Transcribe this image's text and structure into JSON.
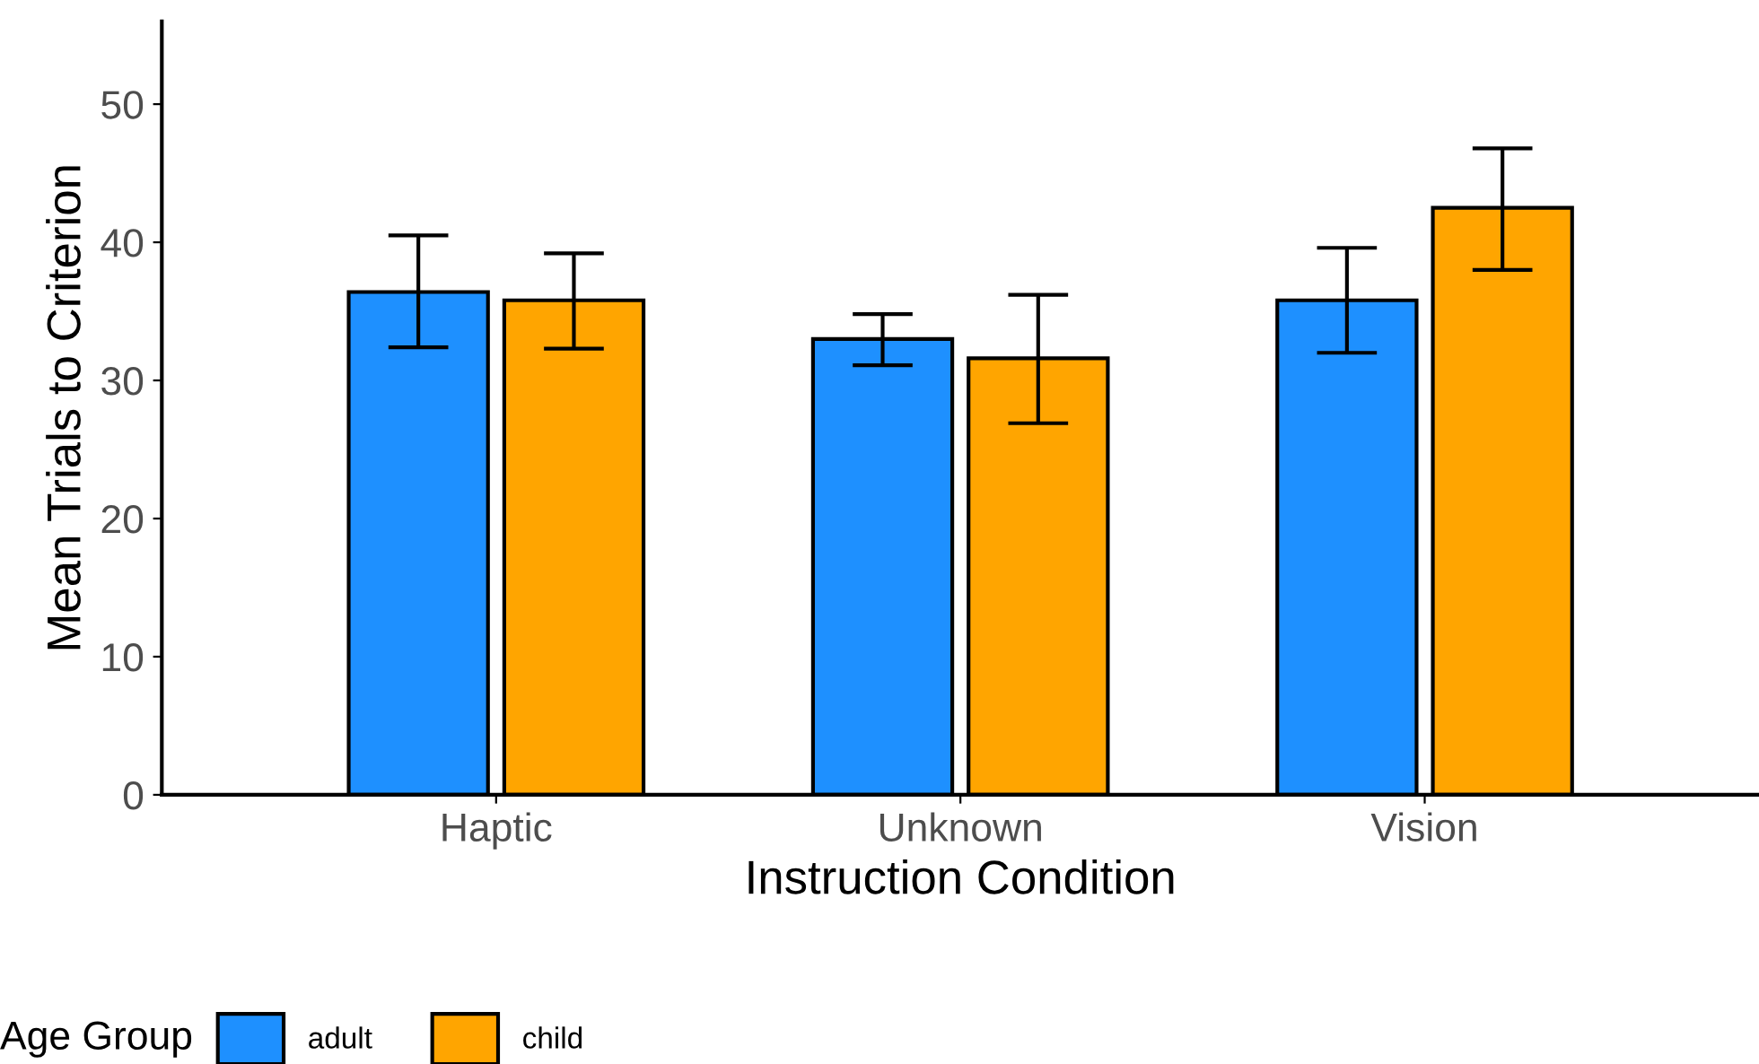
{
  "chart_data": {
    "type": "bar",
    "xlabel": "Instruction Condition",
    "ylabel": "Mean Trials to Criterion",
    "legend_title": "Age Group",
    "categories": [
      "Haptic",
      "Unknown",
      "Vision"
    ],
    "series": [
      {
        "name": "adult",
        "color": "#1e90ff",
        "values": [
          36.4,
          33.0,
          35.8
        ],
        "errors": [
          [
            32.4,
            40.5
          ],
          [
            31.1,
            34.8
          ],
          [
            32.0,
            39.6
          ]
        ]
      },
      {
        "name": "child",
        "color": "#ffa500",
        "values": [
          35.8,
          31.6,
          42.5
        ],
        "errors": [
          [
            32.3,
            39.2
          ],
          [
            26.9,
            36.2
          ],
          [
            38.0,
            46.8
          ]
        ]
      }
    ],
    "ylim": [
      0,
      56
    ],
    "yticks": [
      0,
      10,
      20,
      30,
      40,
      50
    ],
    "grid": false,
    "legend": "bottom"
  }
}
